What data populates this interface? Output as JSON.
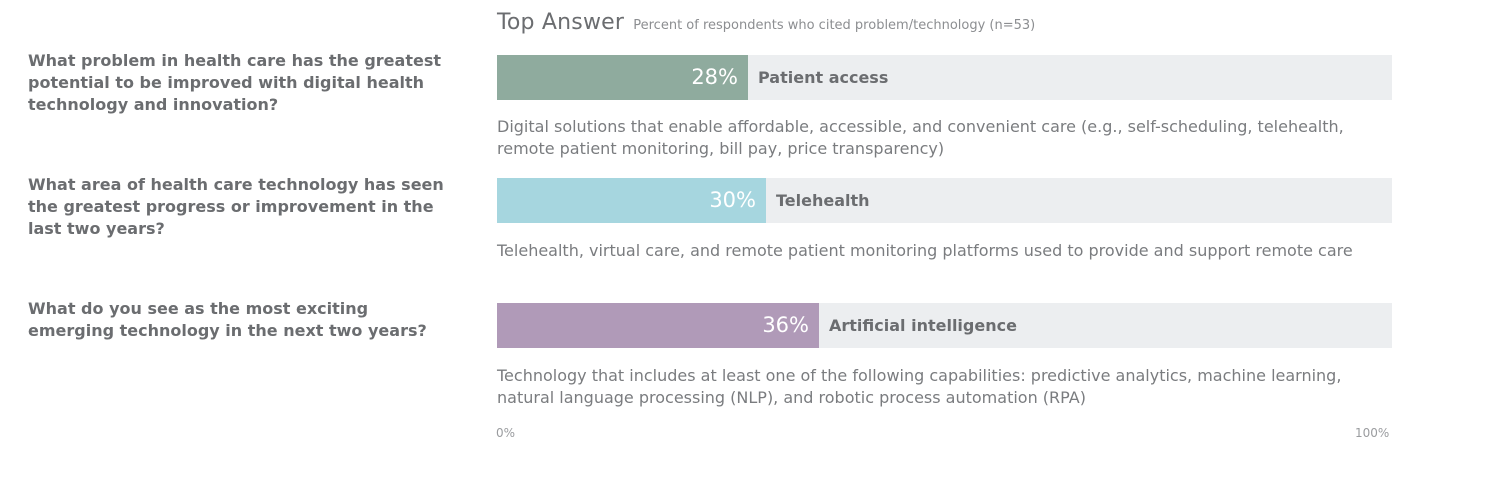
{
  "header": {
    "title": "Top Answer",
    "subtitle": "Percent of respondents who cited problem/technology (n=53)"
  },
  "chart_data": {
    "type": "bar",
    "orientation": "horizontal",
    "categories": [
      "Patient access",
      "Telehealth",
      "Artificial intelligence"
    ],
    "values": [
      28,
      30,
      36
    ],
    "value_labels": [
      "28%",
      "30%",
      "36%"
    ],
    "xlim": [
      0,
      100
    ],
    "x_tick_labels": [
      "0%",
      "100%"
    ],
    "colors": [
      "#8fab9e",
      "#a6d6df",
      "#b09ab8"
    ],
    "track_color": "#eceef0",
    "rows": [
      {
        "question": "What problem in health care has the greatest potential to be improved with digital health technology and innovation?",
        "description": "Digital solutions that enable affordable, accessible, and convenient care (e.g., self-scheduling, telehealth, remote patient monitoring, bill pay, price transparency)"
      },
      {
        "question": "What area of health care technology has seen the greatest progress or improvement in the last two years?",
        "description": "Telehealth, virtual care, and remote patient monitoring platforms used to provide and support remote care"
      },
      {
        "question": "What do you see as the most exciting emerging technology in the next two years?",
        "description": "Technology that includes at least one of the following capabilities: predictive analytics, machine learning, natural language processing (NLP), and robotic process automation (RPA)"
      }
    ]
  }
}
